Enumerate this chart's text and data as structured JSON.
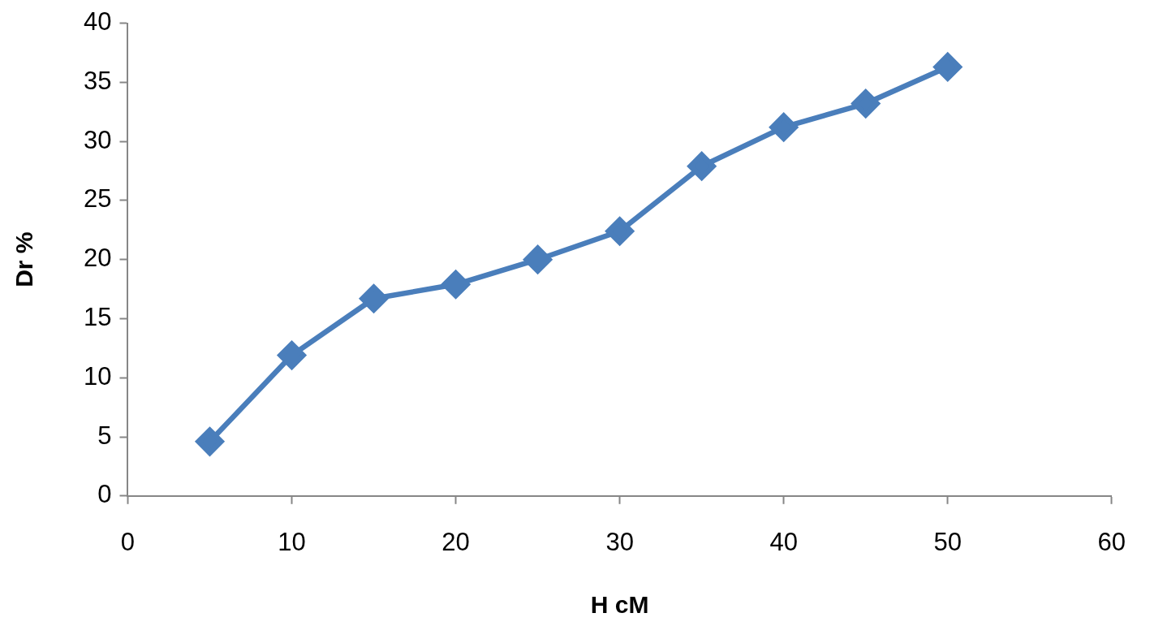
{
  "chart_data": {
    "type": "line",
    "xlabel": "H cM",
    "ylabel": "Dr %",
    "x": [
      5,
      10,
      15,
      20,
      25,
      30,
      35,
      40,
      45,
      50
    ],
    "series": [
      {
        "color": "#4a7ebb",
        "values": [
          4.6,
          11.9,
          16.7,
          17.9,
          20.0,
          22.4,
          27.9,
          31.2,
          33.2,
          36.3
        ]
      }
    ],
    "xlim": [
      0,
      60
    ],
    "xticks": [
      0,
      10,
      20,
      30,
      40,
      50,
      60
    ],
    "ylim": [
      0,
      40
    ],
    "yticks": [
      0,
      5,
      10,
      15,
      20,
      25,
      30,
      35,
      40
    ],
    "marker": "diamond",
    "line_style": "solid"
  }
}
